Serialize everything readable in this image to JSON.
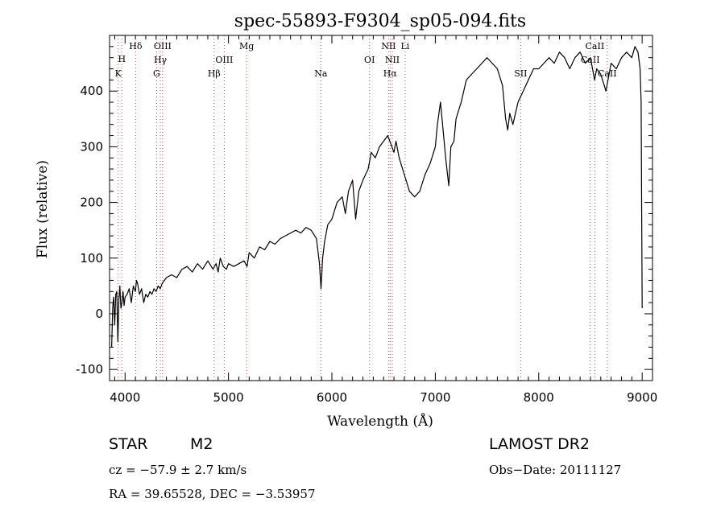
{
  "chart_data": {
    "type": "line",
    "title": "spec-55893-F9304_sp05-094.fits",
    "xlabel": "Wavelength (Å)",
    "ylabel": "Flux (relative)",
    "xlim": [
      3850,
      9100
    ],
    "ylim": [
      -120,
      500
    ],
    "xticks": [
      4000,
      5000,
      6000,
      7000,
      8000,
      9000
    ],
    "yticks": [
      -100,
      0,
      100,
      200,
      300,
      400
    ],
    "line_color": "#000000",
    "marker_color": "#d04040",
    "series": [
      {
        "x": [
          3870,
          3880,
          3890,
          3900,
          3910,
          3920,
          3930,
          3940,
          3950,
          3960,
          3970,
          3980,
          3990,
          4000,
          4020,
          4040,
          4060,
          4080,
          4100,
          4110,
          4120,
          4140,
          4160,
          4180,
          4200,
          4220,
          4240,
          4260,
          4280,
          4300,
          4320,
          4340,
          4360,
          4380,
          4400,
          4450,
          4500,
          4550,
          4600,
          4650,
          4700,
          4750,
          4800,
          4850,
          4880,
          4900,
          4920,
          4950,
          4980,
          5000,
          5050,
          5100,
          5150,
          5180,
          5200,
          5250,
          5300,
          5350,
          5400,
          5450,
          5500,
          5550,
          5600,
          5650,
          5700,
          5750,
          5800,
          5850,
          5880,
          5895,
          5910,
          5930,
          5960,
          6000,
          6050,
          6100,
          6130,
          6160,
          6200,
          6230,
          6260,
          6300,
          6350,
          6380,
          6420,
          6460,
          6500,
          6540,
          6560,
          6580,
          6600,
          6620,
          6650,
          6700,
          6750,
          6800,
          6850,
          6900,
          6950,
          7000,
          7020,
          7050,
          7080,
          7100,
          7130,
          7150,
          7180,
          7200,
          7250,
          7300,
          7350,
          7400,
          7450,
          7500,
          7550,
          7600,
          7650,
          7680,
          7700,
          7720,
          7750,
          7800,
          7850,
          7900,
          7950,
          8000,
          8050,
          8100,
          8150,
          8200,
          8250,
          8300,
          8350,
          8400,
          8450,
          8500,
          8540,
          8560,
          8600,
          8650,
          8700,
          8750,
          8800,
          8850,
          8900,
          8930,
          8960,
          8980,
          8990,
          8995,
          9000
        ],
        "y": [
          -60,
          10,
          30,
          -20,
          35,
          40,
          -50,
          25,
          50,
          10,
          20,
          40,
          15,
          30,
          35,
          45,
          20,
          50,
          40,
          60,
          55,
          35,
          45,
          20,
          35,
          30,
          40,
          35,
          45,
          40,
          50,
          45,
          55,
          60,
          65,
          70,
          65,
          80,
          85,
          75,
          90,
          80,
          95,
          80,
          90,
          75,
          100,
          85,
          80,
          90,
          85,
          90,
          95,
          85,
          110,
          100,
          120,
          115,
          130,
          125,
          135,
          140,
          145,
          150,
          145,
          155,
          150,
          135,
          90,
          45,
          100,
          130,
          160,
          170,
          200,
          210,
          180,
          220,
          240,
          170,
          220,
          240,
          260,
          290,
          280,
          300,
          310,
          320,
          310,
          300,
          290,
          310,
          280,
          250,
          220,
          210,
          220,
          250,
          270,
          300,
          340,
          380,
          320,
          280,
          230,
          300,
          310,
          350,
          380,
          420,
          430,
          440,
          450,
          460,
          450,
          440,
          410,
          350,
          330,
          360,
          340,
          380,
          400,
          420,
          440,
          440,
          450,
          460,
          450,
          470,
          460,
          440,
          460,
          470,
          450,
          460,
          420,
          440,
          430,
          400,
          450,
          440,
          460,
          470,
          460,
          480,
          470,
          440,
          380,
          200,
          10
        ]
      }
    ],
    "spectral_lines": [
      {
        "label": "K",
        "x": 3934,
        "row": 3
      },
      {
        "label": "H",
        "x": 3969,
        "row": 1
      },
      {
        "label": "Hδ",
        "x": 4102,
        "row": 0
      },
      {
        "label": "G",
        "x": 4305,
        "row": 3
      },
      {
        "label": "Hγ",
        "x": 4341,
        "row": 2
      },
      {
        "label": "OIII",
        "x": 4363,
        "row": 0
      },
      {
        "label": "Hβ",
        "x": 4861,
        "row": 3
      },
      {
        "label": "OIII",
        "x": 4959,
        "row": 2
      },
      {
        "label": "Mg",
        "x": 5175,
        "row": 0
      },
      {
        "label": "Na",
        "x": 5893,
        "row": 3
      },
      {
        "label": "OI",
        "x": 6364,
        "row": 2
      },
      {
        "label": "NII",
        "x": 6548,
        "row": 0
      },
      {
        "label": "Hα",
        "x": 6563,
        "row": 3
      },
      {
        "label": "NII",
        "x": 6584,
        "row": 2
      },
      {
        "label": "Li",
        "x": 6708,
        "row": 0
      },
      {
        "label": "SII",
        "x": 7825,
        "row": 3
      },
      {
        "label": "CaII",
        "x": 8498,
        "row": 2
      },
      {
        "label": "CaII",
        "x": 8542,
        "row": 0
      },
      {
        "label": "CaII",
        "x": 8662,
        "row": 3
      }
    ]
  },
  "info": {
    "object_type": "STAR",
    "subclass": "M2",
    "survey": "LAMOST DR2",
    "cz": "cz = −57.9 ± 2.7 km/s",
    "obs_date": "Obs−Date: 20111127",
    "radec": "RA =  39.65528, DEC =  −3.53957"
  }
}
